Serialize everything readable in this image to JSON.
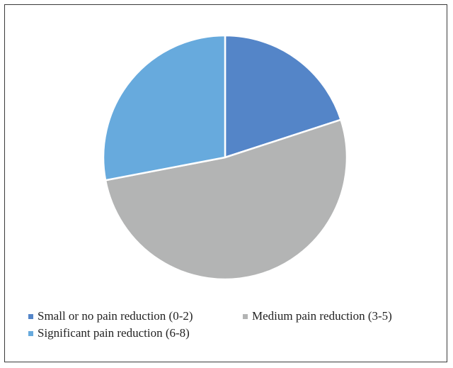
{
  "chart_data": {
    "type": "pie",
    "title": "",
    "categories": [
      "Small or no pain reduction (0-2)",
      "Medium pain reduction (3-5)",
      "Significant pain reduction (6-8)"
    ],
    "values": [
      20,
      52,
      28
    ],
    "colors": [
      "#5485c8",
      "#b3b4b4",
      "#67aadd"
    ],
    "start_angle_deg": 0,
    "direction": "clockwise",
    "slice_border_color": "#ffffff",
    "legend_position": "bottom",
    "grid": false
  },
  "legend": {
    "items": [
      {
        "label": "Small or no pain reduction (0-2)",
        "color": "#5485c8"
      },
      {
        "label": "Medium pain reduction (3-5)",
        "color": "#b3b4b4"
      },
      {
        "label": "Significant pain reduction (6-8)",
        "color": "#67aadd"
      }
    ]
  }
}
